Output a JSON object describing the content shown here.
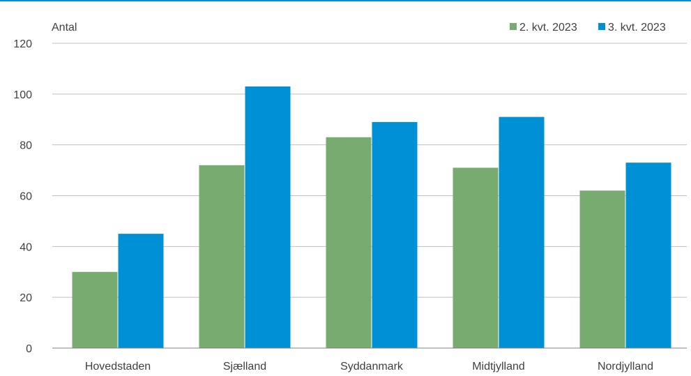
{
  "chart_data": {
    "type": "bar",
    "title": "",
    "xlabel": "",
    "ylabel": "Antal",
    "ylim": [
      0,
      120
    ],
    "yticks": [
      0,
      20,
      40,
      60,
      80,
      100,
      120
    ],
    "grid": true,
    "legend_position": "top-right",
    "categories": [
      "Hovedstaden",
      "Sjælland",
      "Syddanmark",
      "Midtjylland",
      "Nordjylland"
    ],
    "series": [
      {
        "name": "2. kvt. 2023",
        "color": "#77ab6f",
        "values": [
          30,
          72,
          83,
          71,
          62
        ]
      },
      {
        "name": "3. kvt. 2023",
        "color": "#0090d6",
        "values": [
          45,
          103,
          89,
          91,
          73
        ]
      }
    ]
  },
  "colors": {
    "top_rule": "#0090d6",
    "grid": "#bfbfbf",
    "axis": "#808080"
  }
}
